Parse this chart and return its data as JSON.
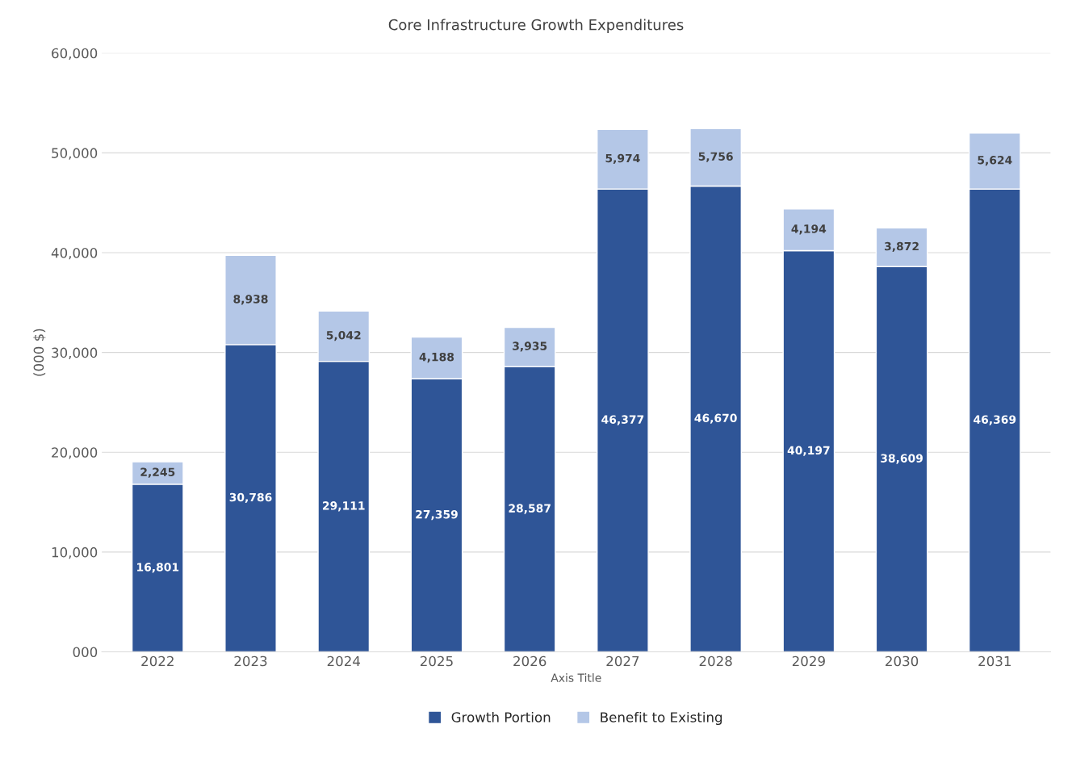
{
  "chart_data": {
    "type": "bar",
    "title": "Core Infrastructure Growth Expenditures",
    "xlabel": "Axis Title",
    "ylabel": "(000 $)",
    "categories": [
      "2022",
      "2023",
      "2024",
      "2025",
      "2026",
      "2027",
      "2028",
      "2029",
      "2030",
      "2031"
    ],
    "stacked": true,
    "series": [
      {
        "name": "Growth Portion",
        "color": "#2f5597",
        "values": [
          16801,
          30786,
          29111,
          27359,
          28587,
          46377,
          46670,
          40197,
          38609,
          46369
        ],
        "value_labels": [
          "16,801",
          "30,786",
          "29,111",
          "27,359",
          "28,587",
          "46,377",
          "46,670",
          "40,197",
          "38,609",
          "46,369"
        ]
      },
      {
        "name": "Benefit to Existing",
        "color": "#b4c7e7",
        "values": [
          2245,
          8938,
          5042,
          4188,
          3935,
          5974,
          5756,
          4194,
          3872,
          5624
        ],
        "value_labels": [
          "2,245",
          "8,938",
          "5,042",
          "4,188",
          "3,935",
          "5,974",
          "5,756",
          "4,194",
          "3,872",
          "5,624"
        ]
      }
    ],
    "ylim": [
      0,
      60000
    ],
    "yticks": [
      {
        "value": 0,
        "label": "000"
      },
      {
        "value": 10000,
        "label": "10,000"
      },
      {
        "value": 20000,
        "label": "20,000"
      },
      {
        "value": 30000,
        "label": "30,000"
      },
      {
        "value": 40000,
        "label": "40,000"
      },
      {
        "value": 50000,
        "label": "50,000"
      },
      {
        "value": 60000,
        "label": "60,000"
      }
    ],
    "grid": "y",
    "legend": "bottom"
  }
}
